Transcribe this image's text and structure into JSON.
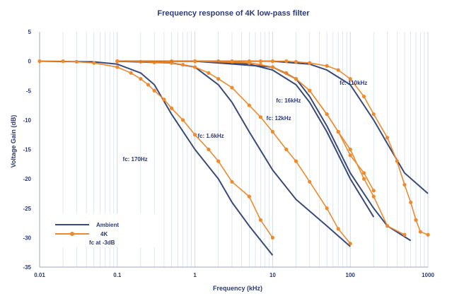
{
  "chart_data": {
    "type": "line",
    "title": "Frequency response of 4K low-pass filter",
    "xlabel": "Frequency (kHz)",
    "ylabel": "Voltage Gain (dB)",
    "x_scale": "log",
    "xlim": [
      0.01,
      1000
    ],
    "ylim": [
      -35,
      5
    ],
    "x_ticks": [
      "0.01",
      "0.1",
      "1",
      "10",
      "100",
      "1000"
    ],
    "y_ticks": [
      "5",
      "0",
      "-5",
      "-10",
      "-15",
      "-20",
      "-25",
      "-30",
      "-35"
    ],
    "grid": "vertical minor log gridlines",
    "legend": {
      "position": "bottom-left",
      "entries": [
        "Ambient",
        "4K",
        "fc at -3dB"
      ]
    },
    "colors": {
      "ambient": "#3a4a7a",
      "cold": "#ee8a2e",
      "text": "#2b3a78",
      "grid": "#cbd9ea"
    },
    "annotations": [
      {
        "text": "fc: 170Hz",
        "x": 0.17,
        "y": -17
      },
      {
        "text": "fc: 1.6kHz",
        "x": 1.6,
        "y": -13
      },
      {
        "text": "fc: 12kHz",
        "x": 12,
        "y": -10
      },
      {
        "text": "fc: 16kHz",
        "x": 16,
        "y": -7
      },
      {
        "text": "fc: 110kHz",
        "x": 110,
        "y": -4
      }
    ],
    "series": [
      {
        "name": "Ambient",
        "filter": "fc: 170Hz",
        "x": [
          0.01,
          0.05,
          0.1,
          0.2,
          0.3,
          0.5,
          1,
          2,
          3,
          5,
          10
        ],
        "values": [
          0,
          -0.1,
          -0.5,
          -2,
          -4,
          -9,
          -15,
          -20,
          -24,
          -28,
          -33
        ]
      },
      {
        "name": "4K",
        "filter": "fc: 170Hz",
        "x": [
          0.01,
          0.02,
          0.03,
          0.05,
          0.1,
          0.15,
          0.2,
          0.25,
          0.3,
          0.4,
          0.5,
          0.7,
          1,
          1.5,
          2,
          3,
          5,
          7,
          10
        ],
        "values": [
          0,
          0,
          -0.1,
          -0.3,
          -1,
          -2,
          -3,
          -4,
          -5,
          -6.5,
          -8,
          -10,
          -12.5,
          -15,
          -17,
          -20.5,
          -23,
          -27,
          -30
        ]
      },
      {
        "name": "Ambient",
        "filter": "fc: 1.6kHz",
        "x": [
          0.1,
          0.5,
          1,
          2,
          3,
          5,
          10,
          20,
          50,
          100
        ],
        "values": [
          0,
          -0.3,
          -1,
          -4,
          -7,
          -12,
          -18.5,
          -23.5,
          -28,
          -31.5
        ]
      },
      {
        "name": "4K",
        "filter": "fc: 1.6kHz",
        "x": [
          0.1,
          0.2,
          0.3,
          0.5,
          0.7,
          1,
          1.5,
          2,
          3,
          5,
          7,
          10,
          15,
          20,
          30,
          50,
          70,
          100
        ],
        "values": [
          0,
          -0.1,
          -0.2,
          -0.3,
          -0.6,
          -1,
          -2,
          -3,
          -4.5,
          -7.5,
          -9.5,
          -12,
          -15,
          -17,
          -20.5,
          -25,
          -28.5,
          -31
        ]
      },
      {
        "name": "Ambient",
        "filter": "fc: 12kHz",
        "x": [
          0.1,
          1,
          5,
          10,
          20,
          30,
          50,
          100,
          200
        ],
        "values": [
          0,
          0,
          -0.5,
          -1.5,
          -4,
          -7,
          -12,
          -20,
          -26.5
        ]
      },
      {
        "name": "4K",
        "filter": "fc: 12kHz",
        "x": [
          0.1,
          0.5,
          1,
          2,
          3,
          5,
          7,
          10,
          15,
          20,
          30,
          50,
          70,
          100,
          150,
          200
        ],
        "values": [
          0,
          0,
          0,
          0,
          -0.1,
          -0.3,
          -0.6,
          -1,
          -2,
          -3,
          -5,
          -9,
          -12,
          -16,
          -19,
          -22
        ]
      },
      {
        "name": "Ambient",
        "filter": "fc: 16kHz",
        "x": [
          0.1,
          1,
          10,
          20,
          30,
          50,
          100,
          200,
          300,
          600
        ],
        "values": [
          0,
          0,
          -1,
          -3,
          -6,
          -11,
          -19,
          -25,
          -28,
          -30.5
        ]
      },
      {
        "name": "4K",
        "filter": "fc: 16kHz",
        "x": [
          0.1,
          1,
          5,
          10,
          20,
          30,
          50,
          70,
          100,
          150,
          200,
          300,
          500
        ],
        "values": [
          0,
          0,
          -0.3,
          -1,
          -3,
          -5,
          -9,
          -12,
          -15,
          -20,
          -23,
          -28,
          -29.5
        ]
      },
      {
        "name": "Ambient",
        "filter": "fc: 110kHz",
        "x": [
          0.1,
          1,
          10,
          30,
          50,
          100,
          200,
          300,
          500,
          1000
        ],
        "values": [
          0,
          0,
          0,
          -0.5,
          -1.5,
          -4,
          -10,
          -14,
          -19,
          -22.5
        ]
      },
      {
        "name": "4K",
        "filter": "fc: 110kHz",
        "x": [
          0.1,
          1,
          3,
          5,
          7,
          10,
          15,
          20,
          30,
          50,
          70,
          100,
          150,
          200,
          300,
          400,
          500,
          600,
          700,
          800,
          1000
        ],
        "values": [
          0,
          0,
          0,
          0,
          0,
          0,
          0,
          -0.1,
          -0.3,
          -0.8,
          -1.5,
          -3,
          -6,
          -9,
          -13,
          -17,
          -21,
          -24,
          -27,
          -29,
          -29.5
        ]
      }
    ]
  }
}
